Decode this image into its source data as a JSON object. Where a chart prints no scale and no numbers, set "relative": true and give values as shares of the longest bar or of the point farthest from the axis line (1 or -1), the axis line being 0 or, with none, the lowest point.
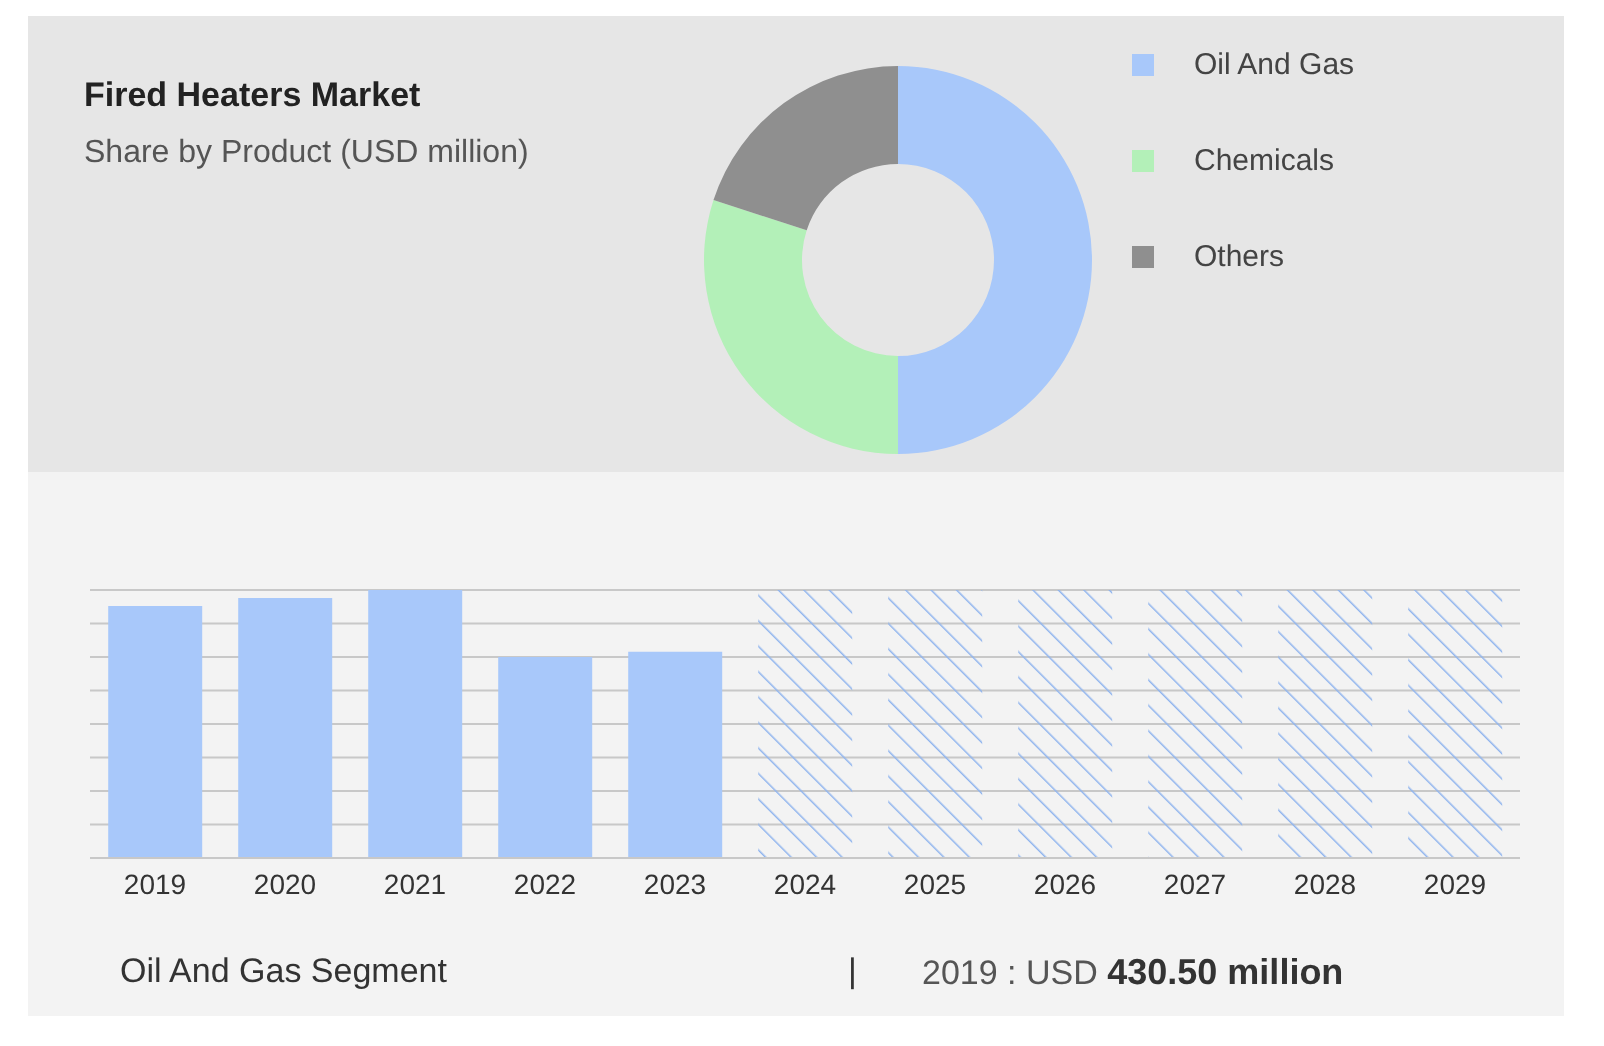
{
  "chart_data": [
    {
      "type": "donut",
      "title": "Fired Heaters Market",
      "subtitle": "Share by Product (USD million)",
      "categories": [
        "Oil And Gas",
        "Chemicals",
        "Others"
      ],
      "values": [
        50,
        30,
        20
      ],
      "colors": [
        "#a8c8fa",
        "#b3f0b8",
        "#8f8f8f"
      ],
      "legend": "top right"
    },
    {
      "type": "bar",
      "relative": true,
      "stacked": true,
      "categories": [
        "2019",
        "2020",
        "2021",
        "2022",
        "2023",
        "2024",
        "2025",
        "2026",
        "2027",
        "2028",
        "2029"
      ],
      "series": [
        {
          "color": "#a8c8fa",
          "values": [
            0.94,
            0.97,
            1,
            0.75,
            0.77,
            null,
            null,
            null,
            null,
            null,
            null
          ]
        },
        {
          "color": "#8fb4ee",
          "values": [
            null,
            null,
            null,
            null,
            null,
            1,
            1,
            1,
            1,
            1,
            1
          ]
        }
      ],
      "grid": "y",
      "annotations": [
        "Oil And Gas Segment",
        "|",
        "2019 : USD",
        "430.50 million"
      ]
    }
  ]
}
